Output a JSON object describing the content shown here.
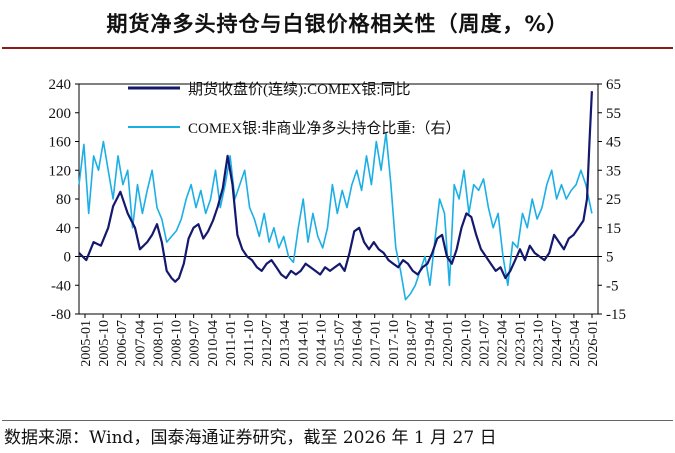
{
  "title": "期货净多头持仓与白银价格相关性（周度，%）",
  "source": "数据来源：Wind，国泰海通证券研究，截至 2026 年 1 月 27 日",
  "colors": {
    "series_price": "#14196e",
    "series_position": "#1cafe6",
    "title_rule": "#8b1a1a"
  },
  "chart_data": {
    "type": "line",
    "title": "期货净多头持仓与白银价格相关性（周度，%）",
    "x_tick_labels": [
      "2005-01",
      "2005-10",
      "2006-07",
      "2007-04",
      "2008-01",
      "2008-10",
      "2009-07",
      "2010-04",
      "2011-01",
      "2011-10",
      "2012-07",
      "2013-04",
      "2014-01",
      "2014-10",
      "2015-07",
      "2016-04",
      "2017-01",
      "2017-10",
      "2018-07",
      "2019-04",
      "2020-01",
      "2020-10",
      "2021-07",
      "2022-04",
      "2023-01",
      "2023-10",
      "2024-07",
      "2025-04",
      "2026-01"
    ],
    "y_left": {
      "ticks": [
        -80,
        -40,
        0,
        40,
        80,
        120,
        160,
        200,
        240
      ],
      "tick_labels": [
        "-80",
        "-40",
        "0",
        "40",
        "80",
        "120",
        "160",
        "200",
        "240"
      ],
      "range": [
        -80,
        240
      ]
    },
    "y_right": {
      "ticks": [
        -15,
        -5,
        5,
        15,
        25,
        35,
        45,
        55,
        65
      ],
      "tick_labels": [
        "-15",
        "-5",
        "5",
        "15",
        "25",
        "35",
        "45",
        "55",
        "65"
      ],
      "range": [
        -15,
        65
      ]
    },
    "series": [
      {
        "name": "期货收盘价(连续):COMEX银:同比",
        "axis": "left",
        "x": [
          2005.0,
          2005.3,
          2005.6,
          2005.9,
          2006.2,
          2006.4,
          2006.7,
          2007.0,
          2007.3,
          2007.5,
          2007.8,
          2008.0,
          2008.2,
          2008.4,
          2008.6,
          2008.8,
          2008.95,
          2009.1,
          2009.3,
          2009.5,
          2009.7,
          2009.9,
          2010.1,
          2010.3,
          2010.5,
          2010.7,
          2010.9,
          2011.1,
          2011.3,
          2011.5,
          2011.7,
          2011.9,
          2012.1,
          2012.3,
          2012.5,
          2012.7,
          2012.9,
          2013.1,
          2013.3,
          2013.5,
          2013.7,
          2013.9,
          2014.1,
          2014.3,
          2014.5,
          2014.7,
          2014.9,
          2015.1,
          2015.3,
          2015.5,
          2015.7,
          2015.9,
          2016.1,
          2016.3,
          2016.5,
          2016.7,
          2016.9,
          2017.1,
          2017.3,
          2017.5,
          2017.7,
          2017.9,
          2018.1,
          2018.3,
          2018.5,
          2018.7,
          2018.9,
          2019.1,
          2019.3,
          2019.5,
          2019.7,
          2019.9,
          2020.1,
          2020.3,
          2020.5,
          2020.7,
          2020.9,
          2021.1,
          2021.3,
          2021.5,
          2021.7,
          2021.9,
          2022.1,
          2022.3,
          2022.5,
          2022.7,
          2022.9,
          2023.1,
          2023.3,
          2023.5,
          2023.7,
          2023.9,
          2024.1,
          2024.3,
          2024.5,
          2024.7,
          2024.9,
          2025.1,
          2025.3,
          2025.5,
          2025.7,
          2025.85,
          2025.95,
          2026.05
        ],
        "y": [
          5,
          -5,
          20,
          15,
          40,
          70,
          90,
          60,
          40,
          10,
          20,
          30,
          45,
          20,
          -20,
          -30,
          -35,
          -30,
          -10,
          25,
          40,
          45,
          25,
          35,
          50,
          70,
          95,
          140,
          100,
          30,
          10,
          0,
          -5,
          -15,
          -20,
          -10,
          -5,
          -15,
          -25,
          -30,
          -20,
          -25,
          -20,
          -10,
          -15,
          -20,
          -25,
          -15,
          -20,
          -15,
          -10,
          -20,
          5,
          35,
          40,
          20,
          10,
          20,
          10,
          5,
          -5,
          -10,
          -15,
          -5,
          -10,
          -20,
          -25,
          -15,
          -10,
          5,
          25,
          30,
          0,
          -10,
          10,
          40,
          60,
          55,
          30,
          10,
          0,
          -10,
          -20,
          -15,
          -30,
          -20,
          -5,
          10,
          -5,
          15,
          5,
          0,
          -5,
          5,
          30,
          20,
          10,
          25,
          30,
          40,
          50,
          80,
          160,
          230
        ]
      },
      {
        "name": "COMEX银:非商业净多头持仓比重:（右）",
        "axis": "right",
        "x": [
          2005.0,
          2005.2,
          2005.4,
          2005.6,
          2005.8,
          2006.0,
          2006.2,
          2006.4,
          2006.6,
          2006.8,
          2007.0,
          2007.2,
          2007.4,
          2007.6,
          2007.8,
          2008.0,
          2008.2,
          2008.4,
          2008.6,
          2008.8,
          2009.0,
          2009.2,
          2009.4,
          2009.6,
          2009.8,
          2010.0,
          2010.2,
          2010.4,
          2010.6,
          2010.8,
          2011.0,
          2011.2,
          2011.4,
          2011.6,
          2011.8,
          2012.0,
          2012.2,
          2012.4,
          2012.6,
          2012.8,
          2013.0,
          2013.2,
          2013.4,
          2013.6,
          2013.8,
          2014.0,
          2014.2,
          2014.4,
          2014.6,
          2014.8,
          2015.0,
          2015.2,
          2015.4,
          2015.6,
          2015.8,
          2016.0,
          2016.2,
          2016.4,
          2016.6,
          2016.8,
          2017.0,
          2017.2,
          2017.4,
          2017.6,
          2017.8,
          2018.0,
          2018.2,
          2018.4,
          2018.6,
          2018.8,
          2019.0,
          2019.2,
          2019.4,
          2019.6,
          2019.8,
          2020.0,
          2020.2,
          2020.4,
          2020.6,
          2020.8,
          2021.0,
          2021.2,
          2021.4,
          2021.6,
          2021.8,
          2022.0,
          2022.2,
          2022.4,
          2022.6,
          2022.8,
          2023.0,
          2023.2,
          2023.4,
          2023.6,
          2023.8,
          2024.0,
          2024.2,
          2024.4,
          2024.6,
          2024.8,
          2025.0,
          2025.2,
          2025.4,
          2025.6,
          2025.8,
          2026.05
        ],
        "y": [
          30,
          44,
          20,
          40,
          35,
          45,
          35,
          25,
          40,
          30,
          35,
          15,
          30,
          20,
          28,
          35,
          22,
          18,
          10,
          12,
          14,
          18,
          25,
          30,
          22,
          28,
          20,
          25,
          35,
          22,
          30,
          40,
          25,
          30,
          35,
          22,
          18,
          12,
          20,
          10,
          15,
          8,
          12,
          5,
          3,
          15,
          25,
          10,
          20,
          12,
          8,
          15,
          30,
          20,
          28,
          22,
          30,
          35,
          28,
          40,
          30,
          45,
          35,
          48,
          30,
          8,
          0,
          -10,
          -8,
          -5,
          0,
          5,
          -5,
          10,
          25,
          20,
          -5,
          30,
          25,
          35,
          20,
          30,
          28,
          32,
          22,
          15,
          20,
          5,
          -5,
          10,
          8,
          20,
          15,
          25,
          18,
          22,
          30,
          35,
          25,
          30,
          25,
          28,
          30,
          35,
          30,
          20
        ]
      }
    ],
    "legend": "top-center"
  }
}
